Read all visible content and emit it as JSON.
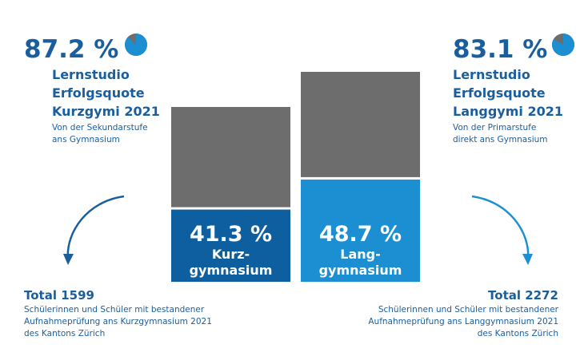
{
  "left": {
    "percent": 87.2,
    "percent_label": "87.2 %",
    "title_lines": [
      "Lernstudio",
      "Erfolgsquote",
      "Kurzgymi 2021"
    ],
    "subtitle_lines": [
      "Von der Sekundarstufe",
      "ans Gymnasium"
    ],
    "total_label": "Total 1599",
    "total": 1599,
    "note_lines": [
      "Schülerinnen und Schüler mit bestandener",
      "Aufnahmeprüfung ans Kurzgymnasium 2021",
      "des Kantons Zürich"
    ]
  },
  "right": {
    "percent": 83.1,
    "percent_label": "83.1 %",
    "title_lines": [
      "Lernstudio",
      "Erfolgsquote",
      "Langgymi 2021"
    ],
    "subtitle_lines": [
      "Von der Primarstufe",
      "direkt ans Gymnasium"
    ],
    "total_label": "Total 2272",
    "total": 2272,
    "note_lines": [
      "Schülerinnen und Schüler mit bestandener",
      "Aufnahmeprüfung ans Langgymnasium 2021",
      "des Kantons Zürich"
    ]
  },
  "bars": [
    {
      "value": 41.3,
      "value_label": "41.3 %",
      "label_lines": [
        "Kurz-",
        "gymnasium"
      ],
      "color": "#0e5fa0"
    },
    {
      "value": 48.7,
      "value_label": "48.7 %",
      "label_lines": [
        "Lang-",
        "gymnasium"
      ],
      "color": "#1b8fd2"
    }
  ],
  "rest_color": "#6d6d6d",
  "pie_color": "#1b8fd2",
  "pie_rest_color": "#6d6d6d",
  "text_color": "#1a5e9e"
}
